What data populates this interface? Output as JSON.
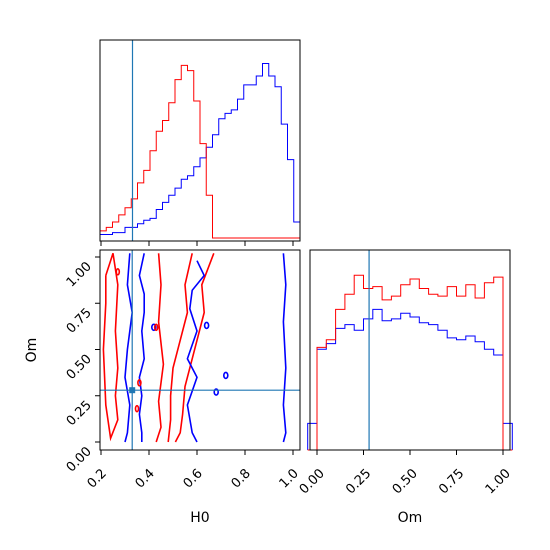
{
  "chart_data": {
    "type": "corner",
    "parameters": [
      "H0",
      "Om"
    ],
    "truth": {
      "H0": 0.33,
      "Om": 0.28,
      "color": "#1f77b4"
    },
    "series_colors": {
      "red": "#ff0000",
      "blue": "#0000ff"
    },
    "axes": {
      "H0": {
        "range": [
          0.2,
          1.0
        ],
        "ticks": [
          "0.2",
          "0.4",
          "0.6",
          "0.8",
          "1.0"
        ],
        "label": "H0"
      },
      "Om": {
        "range": [
          0.0,
          1.0
        ],
        "ticks": [
          "0.00",
          "0.25",
          "0.50",
          "0.75",
          "1.00"
        ],
        "label": "Om"
      }
    },
    "hist_H0": {
      "bin_edges": [
        0.2,
        0.225,
        0.25,
        0.275,
        0.3,
        0.325,
        0.35,
        0.375,
        0.4,
        0.425,
        0.45,
        0.475,
        0.5,
        0.525,
        0.55,
        0.575,
        0.6,
        0.625,
        0.65,
        0.675,
        0.7,
        0.725,
        0.75,
        0.775,
        0.8,
        0.825,
        0.85,
        0.875,
        0.9,
        0.925,
        0.95,
        0.975,
        1.0
      ],
      "red": [
        0.04,
        0.06,
        0.09,
        0.13,
        0.17,
        0.22,
        0.31,
        0.38,
        0.49,
        0.6,
        0.66,
        0.76,
        0.89,
        0.97,
        0.94,
        0.77,
        0.53,
        0.24,
        0.0,
        0,
        0,
        0,
        0,
        0,
        0,
        0,
        0,
        0,
        0,
        0,
        0,
        0
      ],
      "blue": [
        0.02,
        0.02,
        0.03,
        0.03,
        0.06,
        0.06,
        0.08,
        0.1,
        0.11,
        0.16,
        0.2,
        0.24,
        0.28,
        0.33,
        0.35,
        0.4,
        0.45,
        0.51,
        0.58,
        0.67,
        0.7,
        0.72,
        0.78,
        0.86,
        0.86,
        0.91,
        0.98,
        0.91,
        0.85,
        0.64,
        0.44,
        0.09
      ]
    },
    "hist_Om": {
      "bin_edges": [
        -0.05,
        0.0,
        0.05,
        0.1,
        0.15,
        0.2,
        0.25,
        0.3,
        0.35,
        0.4,
        0.45,
        0.5,
        0.55,
        0.6,
        0.65,
        0.7,
        0.75,
        0.8,
        0.85,
        0.9,
        0.95,
        1.0,
        1.05
      ],
      "red": [
        0,
        0.54,
        0.58,
        0.74,
        0.82,
        0.92,
        0.85,
        0.86,
        0.79,
        0.81,
        0.87,
        0.9,
        0.85,
        0.82,
        0.81,
        0.86,
        0.81,
        0.87,
        0.8,
        0.88,
        0.91,
        0
      ],
      "blue": [
        0.14,
        0.53,
        0.56,
        0.64,
        0.66,
        0.63,
        0.69,
        0.74,
        0.68,
        0.69,
        0.72,
        0.7,
        0.67,
        0.66,
        0.63,
        0.59,
        0.58,
        0.6,
        0.57,
        0.53,
        0.5,
        0.14
      ]
    },
    "contours": {
      "red": [
        [
          [
            0.22,
            0.9
          ],
          [
            0.25,
            1.02
          ],
          [
            0.27,
            0.85
          ],
          [
            0.26,
            0.6
          ],
          [
            0.27,
            0.4
          ],
          [
            0.26,
            0.25
          ],
          [
            0.27,
            0.12
          ],
          [
            0.24,
            0.02
          ],
          [
            0.22,
            0.2
          ],
          [
            0.21,
            0.5
          ],
          [
            0.22,
            0.75
          ],
          [
            0.22,
            0.9
          ]
        ],
        [
          [
            0.44,
            1.02
          ],
          [
            0.45,
            0.85
          ],
          [
            0.44,
            0.65
          ],
          [
            0.46,
            0.42
          ],
          [
            0.44,
            0.22
          ],
          [
            0.45,
            0.08
          ],
          [
            0.43,
            0.0
          ]
        ],
        [
          [
            0.58,
            1.02
          ],
          [
            0.55,
            0.85
          ],
          [
            0.56,
            0.7
          ],
          [
            0.53,
            0.55
          ],
          [
            0.5,
            0.4
          ],
          [
            0.49,
            0.25
          ],
          [
            0.49,
            0.12
          ],
          [
            0.48,
            0.0
          ]
        ],
        [
          [
            0.67,
            1.02
          ],
          [
            0.62,
            0.85
          ],
          [
            0.63,
            0.7
          ],
          [
            0.6,
            0.55
          ],
          [
            0.58,
            0.45
          ],
          [
            0.55,
            0.3
          ],
          [
            0.54,
            0.15
          ],
          [
            0.53,
            0.05
          ],
          [
            0.51,
            0.0
          ]
        ]
      ],
      "blue": [
        [
          [
            0.32,
            1.02
          ],
          [
            0.31,
            0.85
          ],
          [
            0.33,
            0.7
          ],
          [
            0.31,
            0.5
          ],
          [
            0.3,
            0.35
          ],
          [
            0.32,
            0.2
          ],
          [
            0.31,
            0.05
          ],
          [
            0.3,
            0.0
          ]
        ],
        [
          [
            0.38,
            1.02
          ],
          [
            0.36,
            0.9
          ],
          [
            0.38,
            0.8
          ],
          [
            0.38,
            0.7
          ],
          [
            0.37,
            0.6
          ],
          [
            0.38,
            0.45
          ],
          [
            0.36,
            0.35
          ],
          [
            0.37,
            0.25
          ],
          [
            0.36,
            0.15
          ],
          [
            0.37,
            0.05
          ],
          [
            0.37,
            0.0
          ]
        ],
        [
          [
            0.6,
            0.98
          ],
          [
            0.63,
            0.9
          ],
          [
            0.58,
            0.82
          ],
          [
            0.57,
            0.72
          ],
          [
            0.6,
            0.6
          ],
          [
            0.56,
            0.45
          ],
          [
            0.6,
            0.35
          ],
          [
            0.56,
            0.2
          ],
          [
            0.58,
            0.05
          ],
          [
            0.6,
            0.0
          ]
        ],
        [
          [
            0.96,
            1.02
          ],
          [
            0.97,
            0.85
          ],
          [
            0.96,
            0.65
          ],
          [
            0.97,
            0.4
          ],
          [
            0.96,
            0.2
          ],
          [
            0.97,
            0.05
          ],
          [
            0.96,
            0.0
          ]
        ]
      ]
    }
  }
}
